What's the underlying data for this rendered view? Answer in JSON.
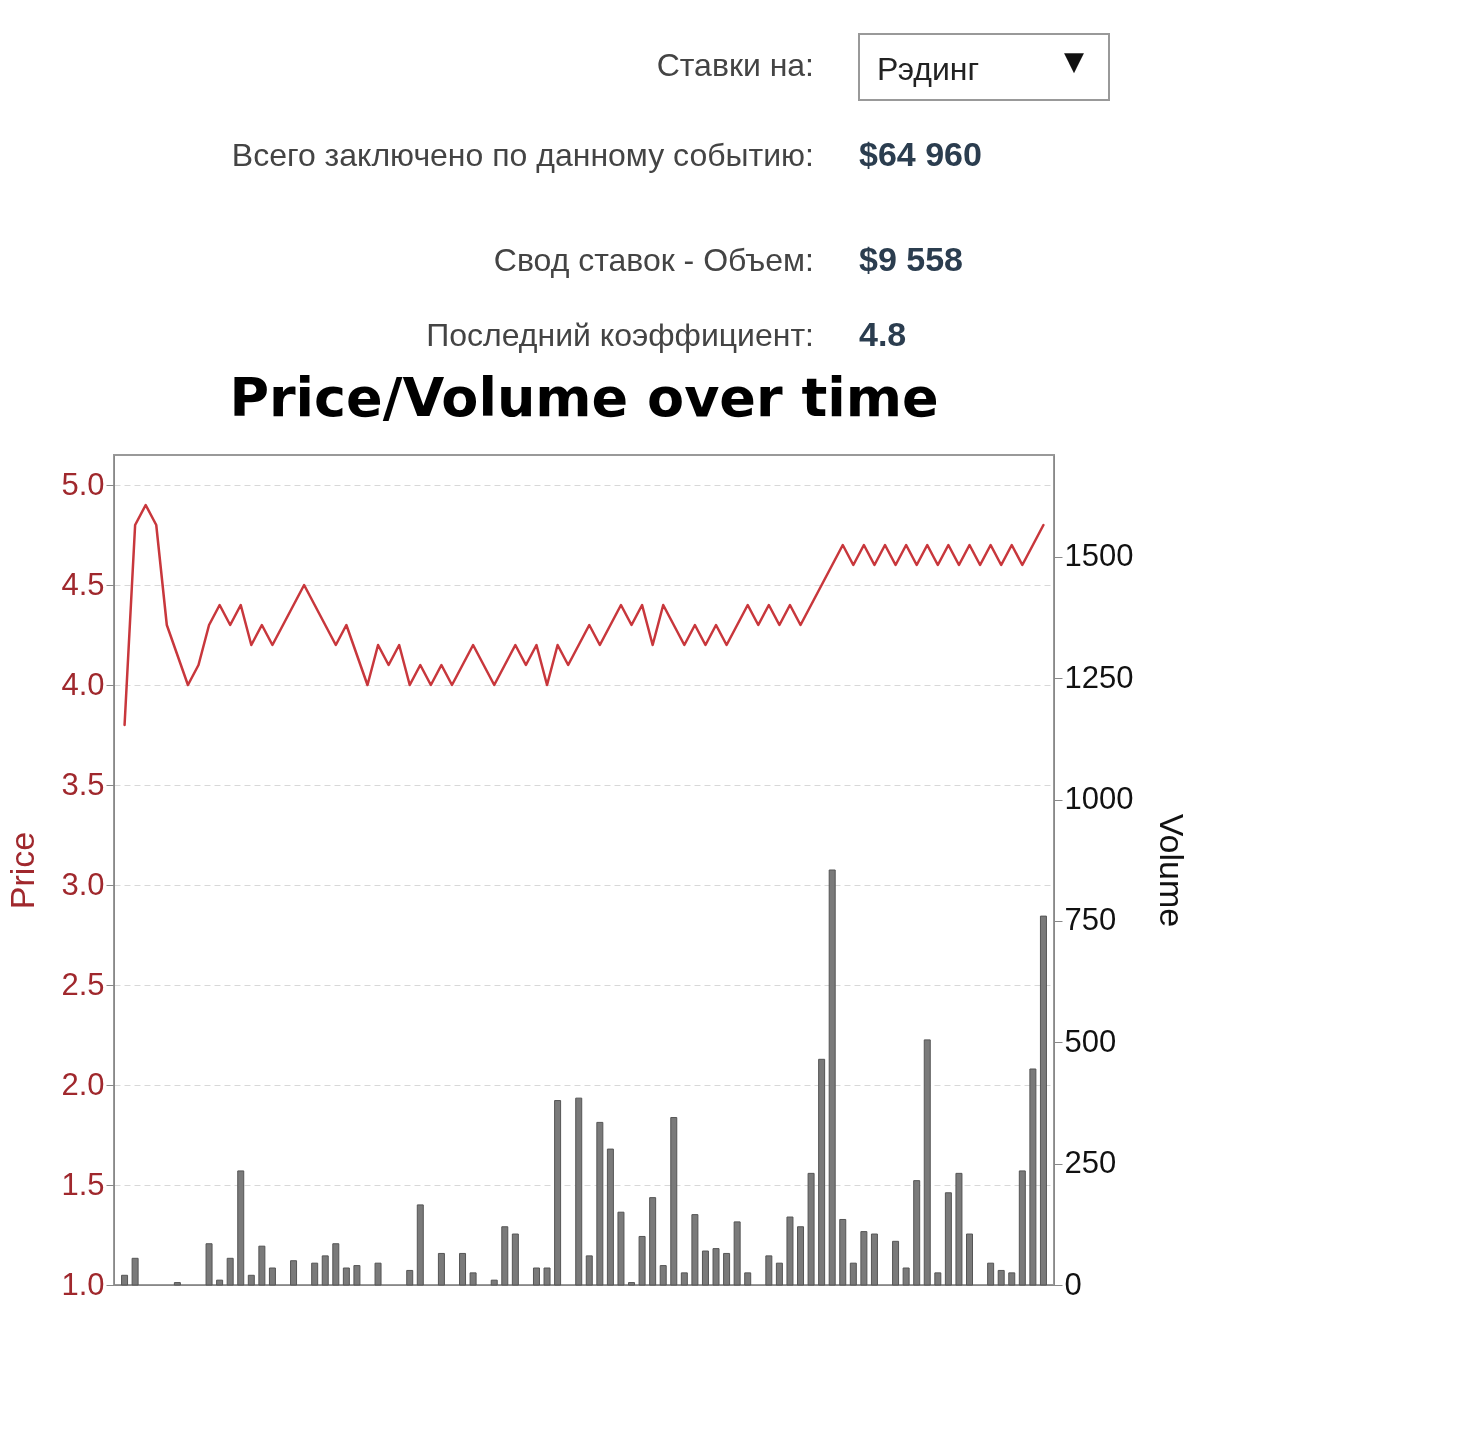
{
  "chart_data": {
    "type": "line",
    "title": "Price/Volume over time",
    "ylabel": "Price",
    "y2label": "Volume",
    "annotations": [
      "Ставки на:",
      "Рэдинг",
      "Всего заключено по данному событию:",
      "$64 960",
      "Свод ставок - Объем:",
      "$9 558",
      "Последний коэффициент:",
      "4.8",
      "▼"
    ],
    "categories": [
      null,
      null,
      null,
      null,
      null,
      null,
      null,
      null,
      null,
      null,
      null,
      null,
      null,
      null,
      null,
      null,
      null,
      null,
      null,
      null,
      null,
      null,
      null,
      null,
      null,
      null,
      null,
      null,
      null,
      null,
      null,
      null,
      null,
      null,
      null,
      null,
      null,
      null,
      null,
      null,
      null,
      null,
      null,
      null,
      null,
      null,
      null,
      null,
      null,
      null,
      null,
      null,
      null,
      null,
      null,
      null,
      null,
      null,
      null,
      null,
      null,
      null,
      null,
      null,
      null,
      null,
      null,
      null,
      null,
      null,
      null,
      null,
      null,
      null,
      null,
      null,
      null,
      null,
      null,
      null,
      null,
      null,
      null,
      null,
      null,
      null,
      null,
      null
    ],
    "ylim": [
      1.0,
      5.15
    ],
    "yticks": [
      {
        "value": 1,
        "label": "1.0"
      },
      {
        "value": 1.5,
        "label": "1.5"
      },
      {
        "value": 2,
        "label": "2.0"
      },
      {
        "value": 2.5,
        "label": "2.5"
      },
      {
        "value": 3,
        "label": "3.0"
      },
      {
        "value": 3.5,
        "label": "3.5"
      },
      {
        "value": 4,
        "label": "4.0"
      },
      {
        "value": 4.5,
        "label": "4.5"
      },
      {
        "value": 5,
        "label": "5.0"
      }
    ],
    "y2lim": [
      0,
      1710
    ],
    "y2ticks": [
      0,
      250,
      500,
      750,
      1000,
      1250,
      1500
    ],
    "grid": "y",
    "legend": false,
    "series": [
      {
        "color": "#c8373c",
        "values": [
          3.8,
          4.8,
          4.9,
          4.8,
          4.3,
          null,
          4.0,
          4.1,
          4.3,
          4.4,
          4.3,
          4.4,
          4.2,
          4.3,
          4.2,
          4.3,
          null,
          4.5,
          null,
          null,
          4.2,
          4.3,
          null,
          4.0,
          4.2,
          4.1,
          4.2,
          4.0,
          4.1,
          4.0,
          4.1,
          4.0,
          null,
          4.2,
          null,
          4.0,
          null,
          4.2,
          4.1,
          4.2,
          4.0,
          4.2,
          4.1,
          null,
          4.3,
          4.2,
          null,
          4.4,
          4.3,
          4.4,
          4.2,
          4.4,
          null,
          4.2,
          4.3,
          4.2,
          4.3,
          4.2,
          null,
          4.4,
          4.3,
          4.4,
          4.3,
          4.4,
          4.3,
          4.4,
          4.5,
          null,
          4.7,
          4.6,
          4.7,
          4.6,
          4.7,
          4.6,
          4.7,
          4.6,
          4.7,
          4.6,
          4.7,
          4.6,
          4.7,
          4.6,
          4.7,
          4.6,
          4.7,
          4.6,
          null,
          4.8
        ]
      },
      {
        "type": "bar",
        "axis": "y2",
        "color": "#7a7a7a",
        "values": [
          20,
          55,
          null,
          null,
          null,
          5,
          null,
          null,
          85,
          10,
          55,
          235,
          20,
          80,
          35,
          null,
          50,
          null,
          45,
          60,
          85,
          35,
          40,
          null,
          45,
          null,
          null,
          30,
          165,
          null,
          65,
          null,
          65,
          25,
          null,
          10,
          120,
          105,
          null,
          35,
          35,
          380,
          null,
          385,
          60,
          335,
          280,
          150,
          5,
          100,
          180,
          40,
          345,
          25,
          145,
          70,
          75,
          65,
          130,
          25,
          null,
          60,
          45,
          140,
          120,
          230,
          465,
          855,
          135,
          45,
          110,
          105,
          null,
          90,
          35,
          215,
          505,
          25,
          190,
          230,
          105,
          null,
          45,
          30,
          25,
          235,
          445,
          760
        ]
      }
    ]
  }
}
